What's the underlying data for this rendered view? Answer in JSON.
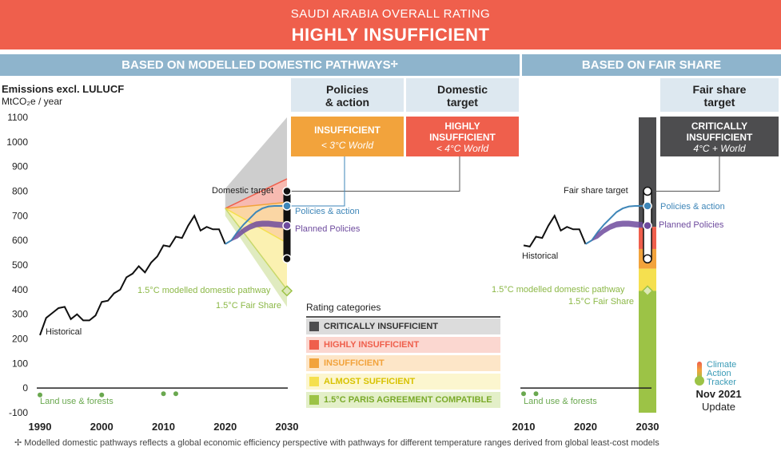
{
  "banner": {
    "line1": "SAUDI ARABIA OVERALL RATING",
    "line2": "HIGHLY INSUFFICIENT"
  },
  "sections": {
    "modelled": "BASED ON MODELLED DOMESTIC PATHWAYS",
    "modelled_mark": "✢",
    "fair": "BASED ON FAIR SHARE"
  },
  "columns": {
    "policies": {
      "title_l1": "Policies",
      "title_l2": "& action",
      "rating": "INSUFFICIENT",
      "world": "< 3°C World",
      "color": "#f2a33c"
    },
    "domestic": {
      "title_l1": "Domestic",
      "title_l2": "target",
      "rating_l1": "HIGHLY",
      "rating_l2": "INSUFFICIENT",
      "world": "< 4°C World",
      "color": "#ef5f4c"
    },
    "fair": {
      "title_l1": "Fair share",
      "title_l2": "target",
      "rating_l1": "CRITICALLY",
      "rating_l2": "INSUFFICIENT",
      "world": "4°C + World",
      "color": "#4d4d4f"
    }
  },
  "axis": {
    "title": "Emissions excl. LULUCF",
    "unit": "MtCO₂e / year"
  },
  "legend": {
    "title": "Rating categories",
    "items": [
      {
        "label": "CRITICALLY INSUFFICIENT",
        "color": "#4d4d4f",
        "bg": "#dcdcdc",
        "text": "#333333"
      },
      {
        "label": "HIGHLY INSUFFICIENT",
        "color": "#ef5f4c",
        "bg": "#fbd7d0",
        "text": "#ef5f4c"
      },
      {
        "label": "INSUFFICIENT",
        "color": "#f2a33c",
        "bg": "#fde6c8",
        "text": "#f2a33c"
      },
      {
        "label": "ALMOST SUFFICIENT",
        "color": "#f5e04f",
        "bg": "#fcf6cf",
        "text": "#d8c200"
      },
      {
        "label": "1.5°C PARIS AGREEMENT COMPATIBLE",
        "color": "#9cc346",
        "bg": "#e3efc8",
        "text": "#7aaa2a"
      }
    ]
  },
  "logo": {
    "l1": "Climate",
    "l2": "Action",
    "l3": "Tracker",
    "date": "Nov 2021",
    "update": "Update"
  },
  "footnote": "✢  Modelled domestic pathways reflects a global economic efficiency perspective with pathways for different temperature ranges derived from global least-cost models",
  "chart_data": [
    {
      "type": "line",
      "panel": "modelled domestic pathways",
      "ylim": [
        -100,
        1100
      ],
      "yticks": [
        -100,
        0,
        100,
        200,
        300,
        400,
        500,
        600,
        700,
        800,
        900,
        1000,
        1100
      ],
      "xticks": [
        1990,
        2000,
        2010,
        2020,
        2030
      ],
      "series": [
        {
          "name": "Historical",
          "x": [
            1990,
            1991,
            1992,
            1993,
            1994,
            1995,
            1996,
            1997,
            1998,
            1999,
            2000,
            2001,
            2002,
            2003,
            2004,
            2005,
            2006,
            2007,
            2008,
            2009,
            2010,
            2011,
            2012,
            2013,
            2014,
            2015,
            2016,
            2017,
            2018,
            2019,
            2020
          ],
          "y": [
            215,
            285,
            305,
            325,
            330,
            280,
            300,
            275,
            275,
            295,
            350,
            355,
            385,
            400,
            450,
            465,
            495,
            470,
            510,
            535,
            580,
            575,
            615,
            610,
            660,
            700,
            640,
            655,
            645,
            645,
            585
          ]
        },
        {
          "name": "Policies & action",
          "x": [
            2020,
            2021,
            2022,
            2023,
            2024,
            2025,
            2026,
            2027,
            2028,
            2029,
            2030
          ],
          "y": [
            585,
            600,
            635,
            665,
            690,
            715,
            730,
            738,
            740,
            740,
            740
          ]
        },
        {
          "name": "Planned Policies",
          "x": [
            2020,
            2021,
            2022,
            2023,
            2024,
            2025,
            2026,
            2027,
            2028,
            2029,
            2030
          ],
          "y": [
            585,
            597,
            620,
            640,
            655,
            665,
            668,
            668,
            665,
            663,
            660
          ]
        },
        {
          "name": "Land use & forests",
          "x": [
            1990,
            2000,
            2010,
            2012
          ],
          "y": [
            -15,
            -15,
            -10,
            -10
          ]
        }
      ],
      "bands": [
        {
          "name": "Critically insufficient",
          "x": [
            2020,
            2030
          ],
          "lower": [
            730,
            850
          ],
          "upper": [
            810,
            1100
          ]
        },
        {
          "name": "Highly insufficient",
          "x": [
            2020,
            2030
          ],
          "lower": [
            730,
            755
          ],
          "upper": [
            730,
            850
          ]
        },
        {
          "name": "Insufficient",
          "x": [
            2020,
            2030
          ],
          "lower": [
            730,
            590
          ],
          "upper": [
            730,
            755
          ]
        },
        {
          "name": "Almost sufficient",
          "x": [
            2020,
            2030
          ],
          "lower": [
            730,
            400
          ],
          "upper": [
            730,
            590
          ]
        },
        {
          "name": "1.5°C compatible",
          "x": [
            2020,
            2030
          ],
          "lower": [
            700,
            330
          ],
          "upper": [
            730,
            400
          ]
        }
      ],
      "target_range": [
        525,
        800
      ],
      "markers": [
        {
          "name": "Domestic target",
          "x": 2030,
          "y": 800
        },
        {
          "name": "Policies & action",
          "x": 2030,
          "y": 740
        },
        {
          "name": "Planned Policies",
          "x": 2030,
          "y": 660
        },
        {
          "name": "1.5°C modelled domestic pathway",
          "x": 2030,
          "y": 395
        }
      ],
      "annotations": [
        "Domestic target",
        "Policies & action",
        "Planned Policies",
        "1.5°C modelled domestic pathway",
        "1.5°C Fair Share",
        "Historical",
        "Land use & forests"
      ]
    },
    {
      "type": "line",
      "panel": "fair share",
      "ylim": [
        -100,
        1100
      ],
      "xticks": [
        2010,
        2020,
        2030
      ],
      "series": [
        {
          "name": "Historical",
          "x": [
            2010,
            2011,
            2012,
            2013,
            2014,
            2015,
            2016,
            2017,
            2018,
            2019,
            2020
          ],
          "y": [
            580,
            575,
            615,
            610,
            660,
            700,
            640,
            655,
            645,
            645,
            585
          ]
        },
        {
          "name": "Policies & action",
          "x": [
            2020,
            2021,
            2022,
            2023,
            2024,
            2025,
            2026,
            2027,
            2028,
            2029,
            2030
          ],
          "y": [
            585,
            600,
            635,
            665,
            690,
            715,
            730,
            738,
            740,
            740,
            740
          ]
        },
        {
          "name": "Planned Policies",
          "x": [
            2020,
            2021,
            2022,
            2023,
            2024,
            2025,
            2026,
            2027,
            2028,
            2029,
            2030
          ],
          "y": [
            585,
            597,
            620,
            640,
            655,
            665,
            668,
            668,
            665,
            663,
            660
          ]
        },
        {
          "name": "Land use & forests",
          "x": [
            2010,
            2012
          ],
          "y": [
            -10,
            -10
          ]
        }
      ],
      "fair_share_bar": [
        {
          "name": "Critically insufficient",
          "from": 655,
          "to": 1100
        },
        {
          "name": "Highly insufficient",
          "from": 565,
          "to": 655
        },
        {
          "name": "Insufficient",
          "from": 485,
          "to": 565
        },
        {
          "name": "Almost sufficient",
          "from": 395,
          "to": 485
        },
        {
          "name": "1.5°C compatible",
          "from": -100,
          "to": 395
        }
      ],
      "target_range": [
        525,
        800
      ],
      "markers": [
        {
          "name": "Fair share target",
          "x": 2030,
          "y": 800
        },
        {
          "name": "Policies & action",
          "x": 2030,
          "y": 740
        },
        {
          "name": "Planned Policies",
          "x": 2030,
          "y": 660
        },
        {
          "name": "1.5°C modelled domestic pathway",
          "x": 2030,
          "y": 395
        }
      ],
      "annotations": [
        "Fair share target",
        "Policies & action",
        "Planned Policies",
        "1.5°C modelled domestic pathway",
        "1.5°C Fair Share",
        "Historical",
        "Land use & forests"
      ]
    }
  ]
}
